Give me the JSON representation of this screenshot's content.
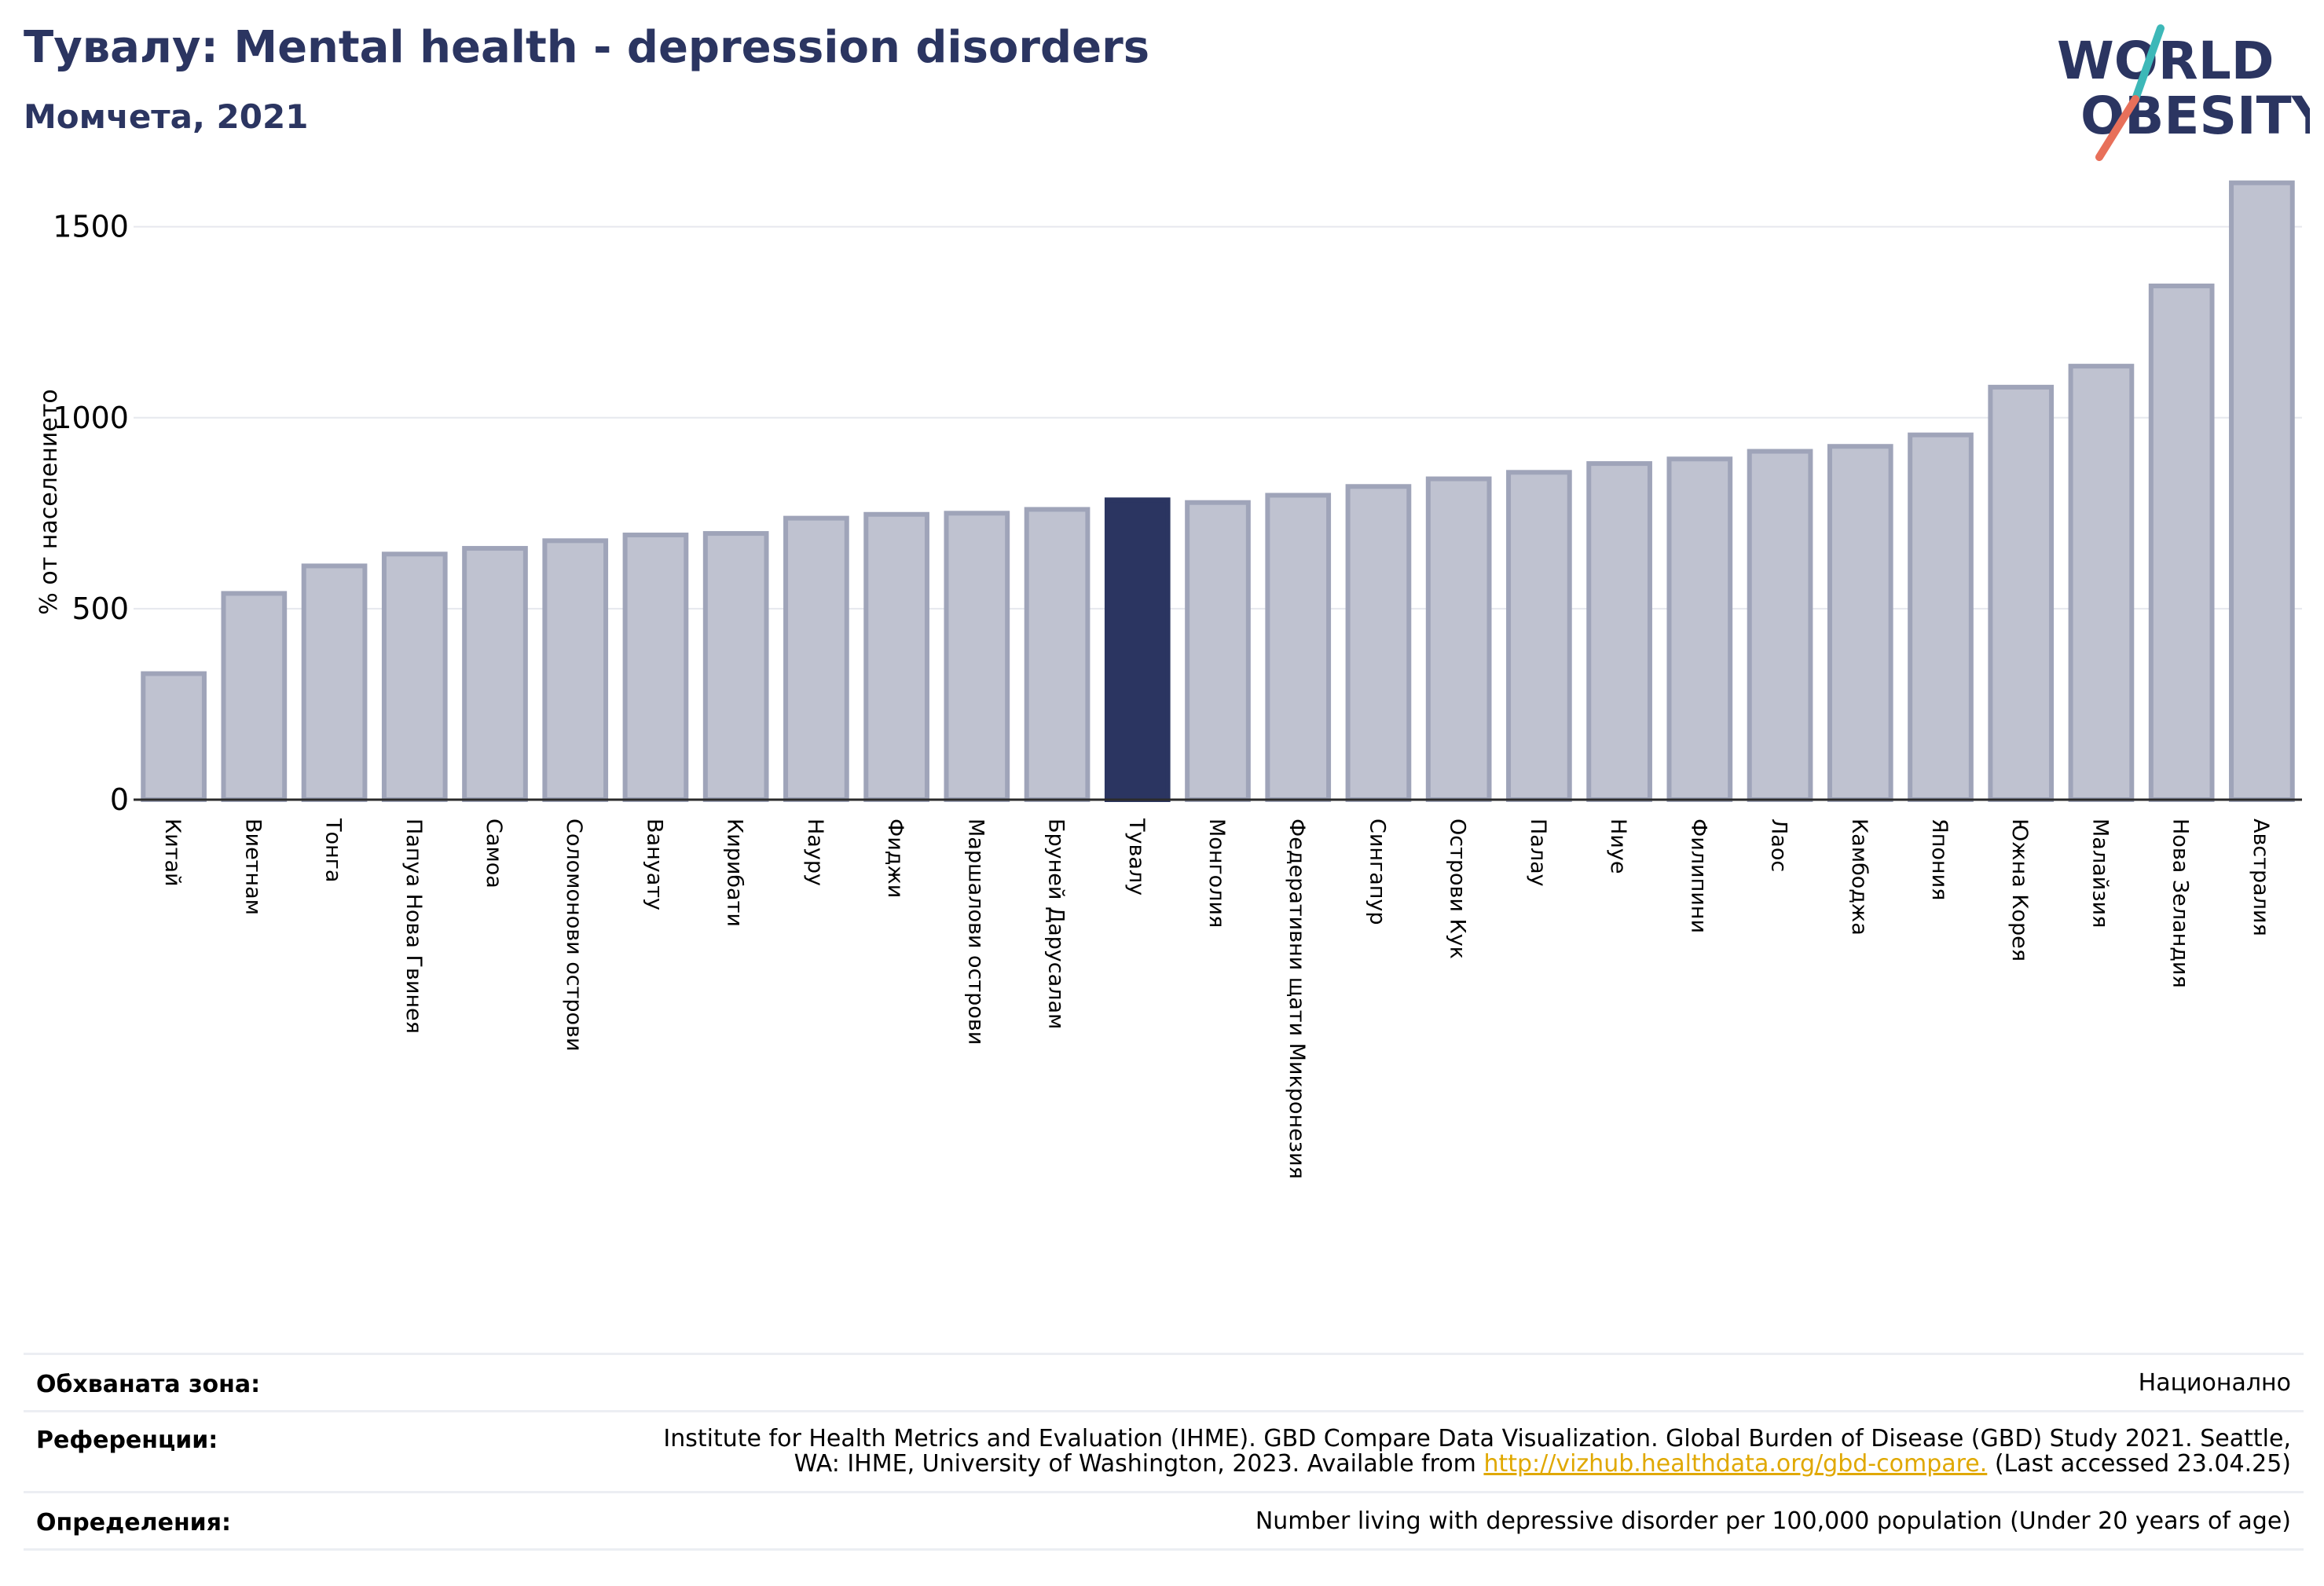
{
  "title": "Тувалу: Mental health - depression disorders",
  "subtitle": "Момчета, 2021",
  "logo": {
    "line1": "WORLD",
    "line2": "OBESITY"
  },
  "colors": {
    "highlight": "#2b3561",
    "bar": "#bfc2d0",
    "bar_edge": "#9fa4b9",
    "text": "#2b3561",
    "logo_teal": "#3db8b8",
    "logo_coral": "#e8705a"
  },
  "chart_data": {
    "type": "bar",
    "ylabel": "% от населението",
    "ylim": [
      0,
      1600
    ],
    "yticks": [
      0,
      500,
      1000,
      1500
    ],
    "grid": true,
    "highlight": "Тувалу",
    "categories": [
      "Китай",
      "Виетнам",
      "Тонга",
      "Папуа Нова Гвинея",
      "Самоа",
      "Соломонови острови",
      "Вануату",
      "Кирибати",
      "Науру",
      "Фиджи",
      "Маршалови острови",
      "Бруней Дарусалам",
      "Тувалу",
      "Монголия",
      "Федеративни щати Микронезия",
      "Сингапур",
      "Острови Кук",
      "Палау",
      "Ниуе",
      "Филипини",
      "Лаос",
      "Камбоджа",
      "Япония",
      "Южна Корея",
      "Малайзия",
      "Нова Зеландия",
      "Австралия"
    ],
    "values": [
      330,
      540,
      612,
      643,
      658,
      678,
      693,
      697,
      737,
      747,
      750,
      760,
      785,
      778,
      797,
      820,
      840,
      857,
      880,
      892,
      912,
      925,
      955,
      1080,
      1135,
      1345,
      1615
    ]
  },
  "footer": {
    "area_label": "Обхваната зона:",
    "area_value": "Национално",
    "refs_label": "Референции:",
    "refs_line1": "Institute for Health Metrics and Evaluation (IHME). GBD Compare Data Visualization. Global Burden of Disease (GBD) Study 2021. Seattle,",
    "refs_line2_pre": "WA: IHME, University of Washington, 2023. Available from ",
    "refs_link": "http://vizhub.healthdata.org/gbd-compare.",
    "refs_line2_post": " (Last accessed 23.04.25)",
    "def_label": "Определения:",
    "def_value": "Number living with depressive disorder per 100,000 population (Under 20 years of age)"
  }
}
